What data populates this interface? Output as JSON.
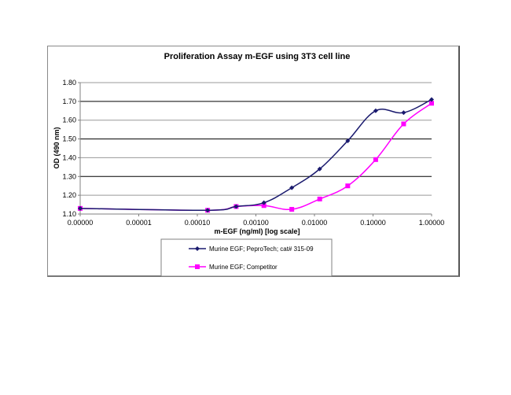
{
  "chart_data": {
    "type": "line",
    "title": "Proliferation Assay m-EGF using 3T3 cell line",
    "xlabel": "m-EGF (ng/ml) [log scale]",
    "ylabel": "OD (490 nm)",
    "x_scale": "log",
    "x_tick_labels": [
      "0.00000",
      "0.00001",
      "0.00010",
      "0.00100",
      "0.01000",
      "0.10000",
      "1.00000"
    ],
    "y_tick_labels": [
      "1.10",
      "1.20",
      "1.30",
      "1.40",
      "1.50",
      "1.60",
      "1.70",
      "1.80"
    ],
    "ylim": [
      1.1,
      1.8
    ],
    "grid": "horizontal",
    "legend_position": "bottom",
    "series": [
      {
        "name": "Murine EGF; PeproTech; cat# 315-09",
        "color": "#1a1a6e",
        "marker": "diamond",
        "x": [
          1e-06,
          0.00015,
          0.00046,
          0.00137,
          0.0041,
          0.0123,
          0.037,
          0.111,
          0.333,
          1.0
        ],
        "values": [
          1.13,
          1.12,
          1.14,
          1.16,
          1.24,
          1.34,
          1.49,
          1.65,
          1.64,
          1.71
        ]
      },
      {
        "name": "Murine EGF; Competitor",
        "color": "#ff00ff",
        "marker": "square",
        "x": [
          1e-06,
          0.00015,
          0.00046,
          0.00137,
          0.0041,
          0.0123,
          0.037,
          0.111,
          0.333,
          1.0
        ],
        "values": [
          1.13,
          1.12,
          1.14,
          1.145,
          1.125,
          1.18,
          1.25,
          1.39,
          1.58,
          1.69
        ]
      }
    ]
  }
}
